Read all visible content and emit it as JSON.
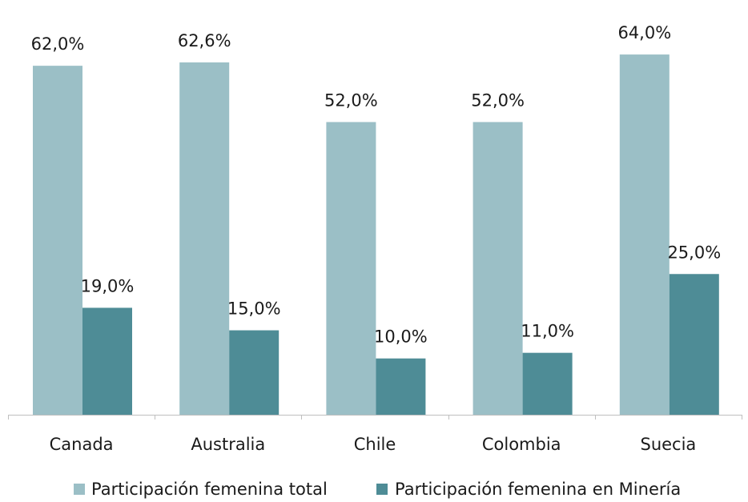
{
  "colors": {
    "series_total": "#9bbfc6",
    "series_mineria": "#4e8c96",
    "axis": "#bfbfbf"
  },
  "chart_data": {
    "type": "bar",
    "categories": [
      "Canada",
      "Australia",
      "Chile",
      "Colombia",
      "Suecia"
    ],
    "series": [
      {
        "name": "Participación femenina total",
        "values": [
          62.0,
          62.6,
          52.0,
          52.0,
          64.0
        ],
        "labels": [
          "62,0%",
          "62,6%",
          "52,0%",
          "52,0%",
          "64,0%"
        ]
      },
      {
        "name": "Participación femenina en Minería",
        "values": [
          19.0,
          15.0,
          10.0,
          11.0,
          25.0
        ],
        "labels": [
          "19,0%",
          "15,0%",
          "10,0%",
          "11,0%",
          "25,0%"
        ]
      }
    ],
    "ylim": [
      0,
      65
    ],
    "grid": false,
    "legend_position": "bottom"
  }
}
